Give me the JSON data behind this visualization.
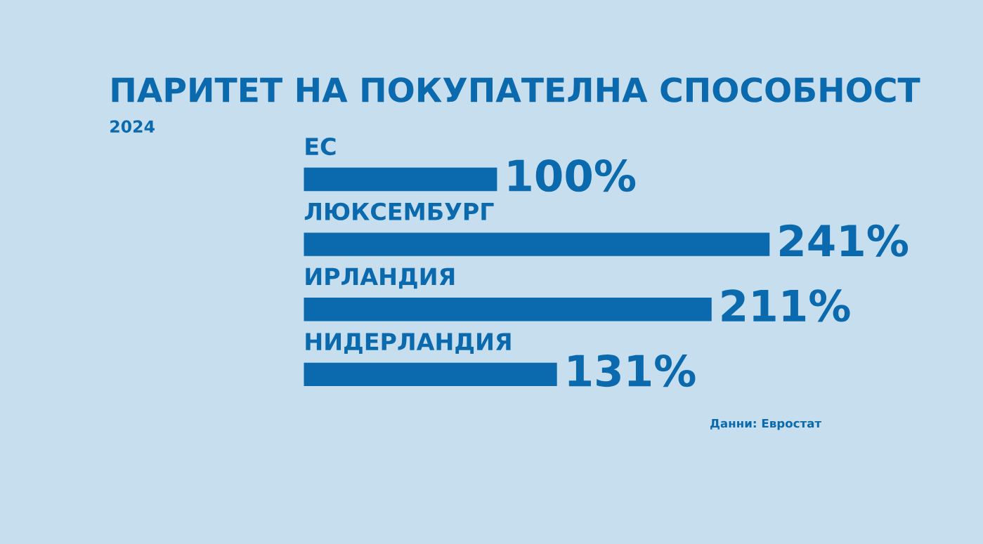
{
  "chart_data": {
    "type": "bar",
    "orientation": "horizontal",
    "title": "ПАРИТЕТ НА ПОКУПАТЕЛНА СПОСОБНОСТ",
    "subtitle": "2024",
    "categories": [
      "ЕС",
      "ЛЮКСЕМБУРГ",
      "ИРЛАНДИЯ",
      "НИДЕРЛАНДИЯ"
    ],
    "values": [
      100,
      241,
      211,
      131
    ],
    "value_labels": [
      "100%",
      "241%",
      "211%",
      "131%"
    ],
    "color": "#0a6aad",
    "annotations": [
      "Данни: Евростат"
    ]
  }
}
